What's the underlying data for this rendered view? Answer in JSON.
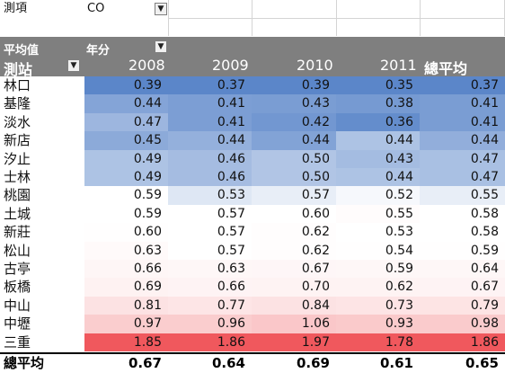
{
  "filter": {
    "field_label": "測項",
    "field_value": "CO"
  },
  "pivot": {
    "value_label": "平均值",
    "column_field_label": "年分",
    "row_field_label": "測站",
    "grand_total_label": "總平均",
    "columns": [
      "2008",
      "2009",
      "2010",
      "2011"
    ]
  },
  "chart_data": {
    "type": "heatmap",
    "title": "",
    "xlabel": "年分",
    "ylabel": "測站",
    "columns": [
      "2008",
      "2009",
      "2010",
      "2011",
      "總平均"
    ],
    "rows": [
      {
        "station": "林口",
        "values": [
          "0.39",
          "0.37",
          "0.39",
          "0.35",
          "0.37"
        ]
      },
      {
        "station": "基隆",
        "values": [
          "0.44",
          "0.41",
          "0.43",
          "0.38",
          "0.41"
        ]
      },
      {
        "station": "淡水",
        "values": [
          "0.47",
          "0.41",
          "0.42",
          "0.36",
          "0.41"
        ]
      },
      {
        "station": "新店",
        "values": [
          "0.45",
          "0.44",
          "0.44",
          "0.44",
          "0.44"
        ]
      },
      {
        "station": "汐止",
        "values": [
          "0.49",
          "0.46",
          "0.50",
          "0.43",
          "0.47"
        ]
      },
      {
        "station": "士林",
        "values": [
          "0.49",
          "0.46",
          "0.50",
          "0.44",
          "0.47"
        ]
      },
      {
        "station": "桃園",
        "values": [
          "0.59",
          "0.53",
          "0.57",
          "0.52",
          "0.55"
        ]
      },
      {
        "station": "土城",
        "values": [
          "0.59",
          "0.57",
          "0.60",
          "0.55",
          "0.58"
        ]
      },
      {
        "station": "新莊",
        "values": [
          "0.60",
          "0.57",
          "0.62",
          "0.53",
          "0.58"
        ]
      },
      {
        "station": "松山",
        "values": [
          "0.63",
          "0.57",
          "0.62",
          "0.54",
          "0.59"
        ]
      },
      {
        "station": "古亭",
        "values": [
          "0.66",
          "0.63",
          "0.67",
          "0.59",
          "0.64"
        ]
      },
      {
        "station": "板橋",
        "values": [
          "0.69",
          "0.66",
          "0.70",
          "0.62",
          "0.67"
        ]
      },
      {
        "station": "中山",
        "values": [
          "0.81",
          "0.77",
          "0.84",
          "0.73",
          "0.79"
        ]
      },
      {
        "station": "中壢",
        "values": [
          "0.97",
          "0.96",
          "1.06",
          "0.93",
          "0.98"
        ]
      },
      {
        "station": "三重",
        "values": [
          "1.85",
          "1.86",
          "1.97",
          "1.78",
          "1.86"
        ]
      }
    ],
    "grand_total": {
      "label": "總平均",
      "values": [
        "0.67",
        "0.64",
        "0.69",
        "0.61",
        "0.65"
      ]
    },
    "color_scale": {
      "low": "#5b86c9",
      "mid": "#ffffff",
      "high": "#f0585d"
    }
  }
}
